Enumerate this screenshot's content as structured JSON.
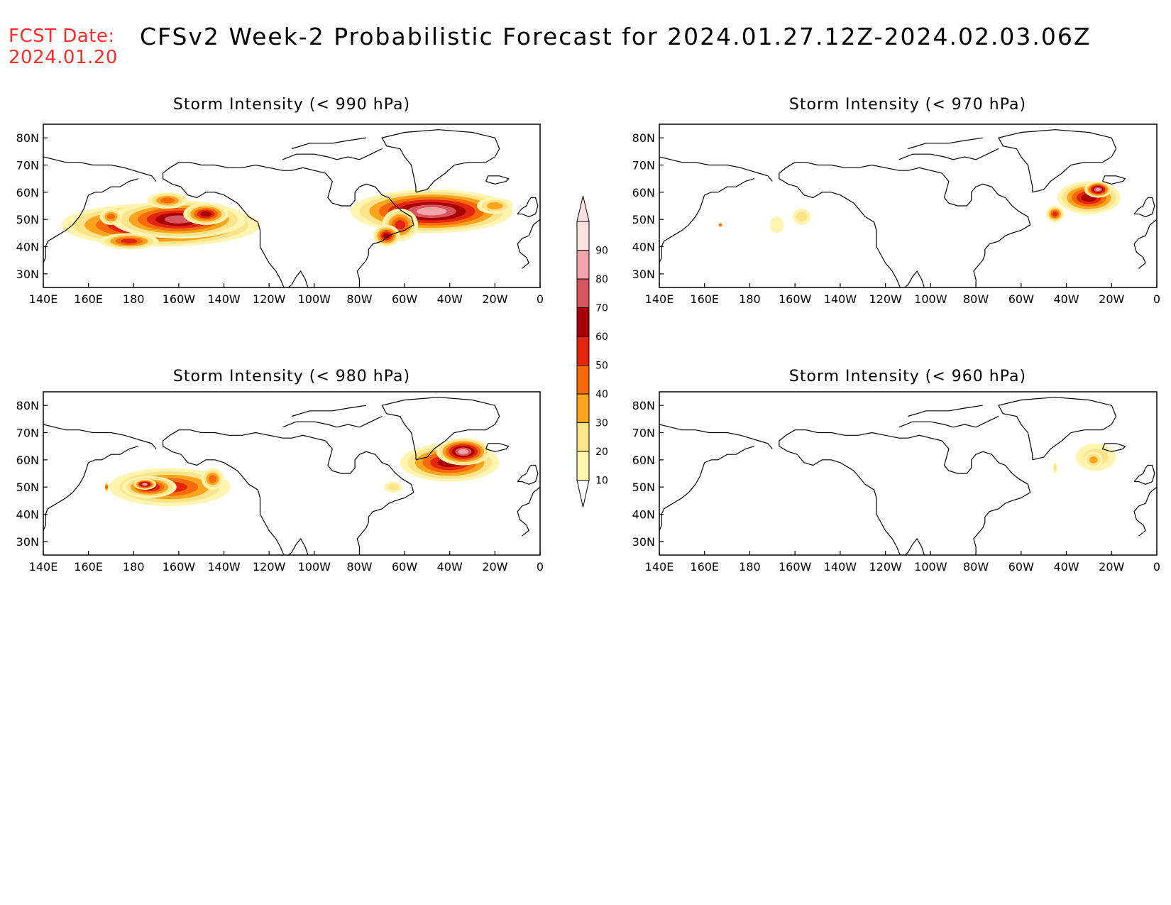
{
  "header": {
    "fcst_label_line1": "FCST Date:",
    "fcst_label_line2": "2024.01.20",
    "title": "CFSv2 Week-2 Probabilistic Forecast for 2024.01.27.12Z-2024.02.03.06Z"
  },
  "colors": {
    "fcst_label": "#ff2a2a",
    "scale": [
      "#fff5b0",
      "#fde38a",
      "#fca41d",
      "#f66a0a",
      "#e32410",
      "#a70006",
      "#d8545e",
      "#f3a4ab",
      "#fde0e2"
    ]
  },
  "colorbar": {
    "levels": [
      "10",
      "20",
      "30",
      "40",
      "50",
      "60",
      "70",
      "80",
      "90"
    ]
  },
  "axes": {
    "x_ticks": [
      "140E",
      "160E",
      "180",
      "160W",
      "140W",
      "120W",
      "100W",
      "80W",
      "60W",
      "40W",
      "20W",
      "0"
    ],
    "y_ticks": [
      "80N",
      "70N",
      "60N",
      "50N",
      "40N",
      "30N"
    ]
  },
  "panels": [
    {
      "title": "Storm Intensity (< 990 hPa)",
      "blobs": [
        {
          "lon": 192,
          "lat": 48,
          "rlon": 44,
          "rlat": 8,
          "level": 8
        },
        {
          "lon": 200,
          "lat": 50,
          "rlon": 30,
          "rlat": 7,
          "level": 7
        },
        {
          "lon": 178,
          "lat": 42,
          "rlon": 13,
          "rlat": 3,
          "level": 5
        },
        {
          "lon": 212,
          "lat": 52,
          "rlon": 10,
          "rlat": 4,
          "level": 6
        },
        {
          "lon": 195,
          "lat": 57,
          "rlon": 9,
          "rlat": 3,
          "level": 4
        },
        {
          "lon": 170,
          "lat": 51,
          "rlon": 5,
          "rlat": 3,
          "level": 4
        },
        {
          "lon": 312,
          "lat": 53,
          "rlon": 36,
          "rlat": 8,
          "level": 8
        },
        {
          "lon": 298,
          "lat": 48,
          "rlon": 8,
          "rlat": 6,
          "level": 5
        },
        {
          "lon": 292,
          "lat": 44,
          "rlon": 6,
          "rlat": 4,
          "level": 6
        },
        {
          "lon": 340,
          "lat": 55,
          "rlon": 8,
          "rlat": 3,
          "level": 3
        }
      ]
    },
    {
      "title": "Storm Intensity (< 970 hPa)",
      "blobs": [
        {
          "lon": 330,
          "lat": 58,
          "rlon": 14,
          "rlat": 6,
          "level": 6
        },
        {
          "lon": 334,
          "lat": 61,
          "rlon": 6,
          "rlat": 3,
          "level": 8
        },
        {
          "lon": 315,
          "lat": 52,
          "rlon": 4,
          "rlat": 3,
          "level": 5
        },
        {
          "lon": 203,
          "lat": 51,
          "rlon": 4,
          "rlat": 3,
          "level": 2
        },
        {
          "lon": 192,
          "lat": 48,
          "rlon": 3,
          "rlat": 3,
          "level": 1
        },
        {
          "lon": 167,
          "lat": 48,
          "rlon": 1,
          "rlat": 1,
          "level": 4
        }
      ]
    },
    {
      "title": "Storm Intensity (< 980 hPa)",
      "blobs": [
        {
          "lon": 196,
          "lat": 50,
          "rlon": 27,
          "rlat": 7,
          "level": 5
        },
        {
          "lon": 187,
          "lat": 50,
          "rlon": 12,
          "rlat": 4,
          "level": 6
        },
        {
          "lon": 185,
          "lat": 51,
          "rlon": 5,
          "rlat": 2,
          "level": 8
        },
        {
          "lon": 215,
          "lat": 53,
          "rlon": 5,
          "rlat": 4,
          "level": 4
        },
        {
          "lon": 320,
          "lat": 59,
          "rlon": 22,
          "rlat": 7,
          "level": 6
        },
        {
          "lon": 326,
          "lat": 63,
          "rlon": 12,
          "rlat": 5,
          "level": 8
        },
        {
          "lon": 295,
          "lat": 50,
          "rlon": 4,
          "rlat": 2,
          "level": 2
        },
        {
          "lon": 168,
          "lat": 50,
          "rlon": 1,
          "rlat": 2,
          "level": 4
        }
      ]
    },
    {
      "title": "Storm Intensity (< 960 hPa)",
      "blobs": [
        {
          "lon": 333,
          "lat": 61,
          "rlon": 9,
          "rlat": 5,
          "level": 2
        },
        {
          "lon": 332,
          "lat": 60,
          "rlon": 4,
          "rlat": 3,
          "level": 3
        },
        {
          "lon": 315,
          "lat": 57,
          "rlon": 1,
          "rlat": 2,
          "level": 2
        }
      ]
    }
  ]
}
